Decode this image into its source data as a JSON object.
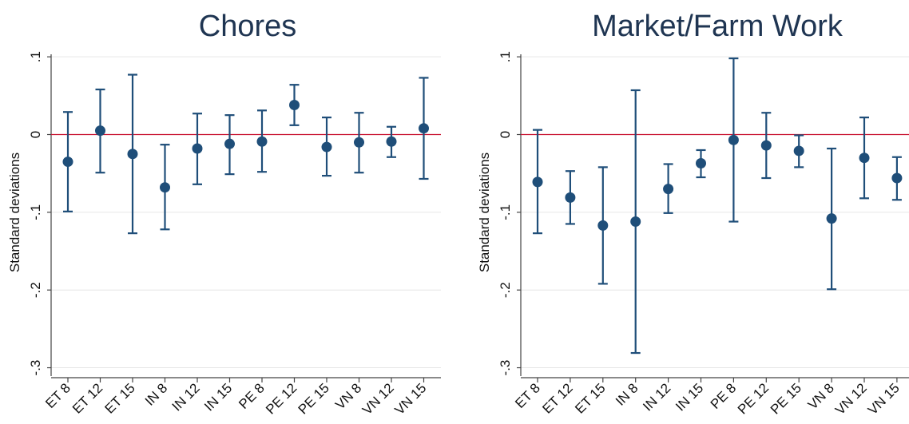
{
  "chart_data": [
    {
      "type": "scatter",
      "title": "Chores",
      "xlabel": "",
      "ylabel": "Standard deviations",
      "categories": [
        "ET 8",
        "ET 12",
        "ET 15",
        "IN 8",
        "IN 12",
        "IN 15",
        "PE 8",
        "PE 12",
        "PE 15",
        "VN 8",
        "VN 12",
        "VN 15"
      ],
      "series": [
        {
          "estimate": [
            -0.035,
            0.005,
            -0.025,
            -0.068,
            -0.018,
            -0.012,
            -0.009,
            0.038,
            -0.016,
            -0.01,
            -0.009,
            0.008
          ],
          "ci_low": [
            -0.099,
            -0.049,
            -0.127,
            -0.122,
            -0.064,
            -0.051,
            -0.048,
            0.012,
            -0.053,
            -0.049,
            -0.029,
            -0.057
          ],
          "ci_high": [
            0.029,
            0.058,
            0.077,
            -0.013,
            0.027,
            0.025,
            0.031,
            0.064,
            0.022,
            0.028,
            0.01,
            0.073
          ]
        }
      ],
      "yticks": [
        0.1,
        0,
        -0.1,
        -0.2,
        -0.3
      ],
      "ytick_labels": [
        ".1",
        "0",
        "-.1",
        "-.2",
        "-.3"
      ],
      "ylim": [
        -0.31,
        0.1
      ],
      "reference_line": 0,
      "grid": true,
      "colors": {
        "marker": "#1f4e79",
        "reference_line": "#c8102e",
        "grid": "#e6e6e6"
      }
    },
    {
      "type": "scatter",
      "title": "Market/Farm Work",
      "xlabel": "",
      "ylabel": "Standard deviations",
      "categories": [
        "ET 8",
        "ET 12",
        "ET 15",
        "IN 8",
        "IN 12",
        "IN 15",
        "PE 8",
        "PE 12",
        "PE 15",
        "VN 8",
        "VN 12",
        "VN 15"
      ],
      "series": [
        {
          "estimate": [
            -0.061,
            -0.081,
            -0.117,
            -0.112,
            -0.07,
            -0.037,
            -0.007,
            -0.014,
            -0.021,
            -0.108,
            -0.03,
            -0.056
          ],
          "ci_low": [
            -0.127,
            -0.115,
            -0.192,
            -0.281,
            -0.101,
            -0.055,
            -0.112,
            -0.056,
            -0.042,
            -0.199,
            -0.082,
            -0.084
          ],
          "ci_high": [
            0.006,
            -0.047,
            -0.042,
            0.057,
            -0.038,
            -0.02,
            0.098,
            0.028,
            -0.001,
            -0.018,
            0.022,
            -0.029
          ]
        }
      ],
      "yticks": [
        0.1,
        0,
        -0.1,
        -0.2,
        -0.3
      ],
      "ytick_labels": [
        ".1",
        "0",
        "-.1",
        "-.2",
        "-.3"
      ],
      "ylim": [
        -0.31,
        0.1
      ],
      "reference_line": 0,
      "grid": true,
      "colors": {
        "marker": "#1f4e79",
        "reference_line": "#c8102e",
        "grid": "#e6e6e6"
      }
    }
  ]
}
